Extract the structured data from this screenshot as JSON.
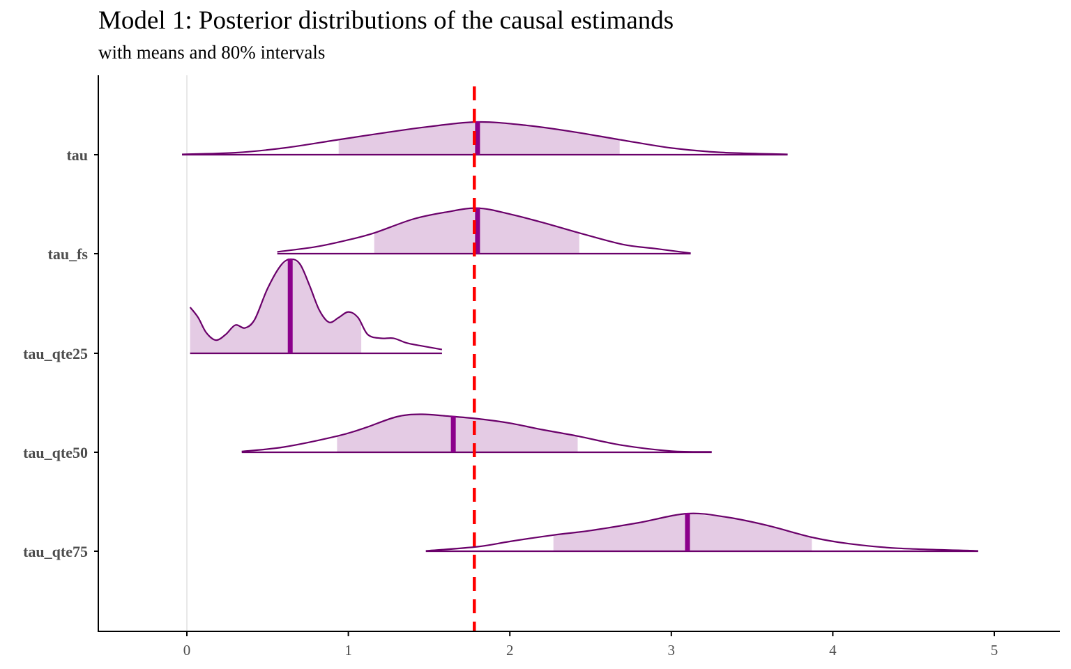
{
  "title": "Model 1: Posterior distributions of the causal estimands",
  "subtitle": "with means and 80% intervals",
  "colors": {
    "density_line": "#6a006a",
    "interval_fill": "#e4cbe4",
    "mean_line": "#8b008b",
    "reference_line": "#ff0000",
    "zero_line": "#d9d9d9",
    "axis": "#000000",
    "tick_label": "#4d4d4d"
  },
  "chart_data": {
    "type": "area",
    "title": "Model 1: Posterior distributions of the causal estimands",
    "subtitle": "with means and 80% intervals",
    "xlabel": "",
    "ylabel": "",
    "xlim": [
      -0.55,
      5.4
    ],
    "x_ticks": [
      0,
      1,
      2,
      3,
      4,
      5
    ],
    "grid": false,
    "reference_line": {
      "x": 1.78,
      "style": "dashed"
    },
    "zero_line": {
      "x": 0
    },
    "series": [
      {
        "name": "tau",
        "mean": 1.8,
        "interval_80": [
          0.94,
          2.68
        ],
        "range": [
          -0.03,
          3.72
        ],
        "density": [
          [
            -0.03,
            0.01
          ],
          [
            0.3,
            0.06
          ],
          [
            0.6,
            0.2
          ],
          [
            0.94,
            0.45
          ],
          [
            1.2,
            0.64
          ],
          [
            1.5,
            0.84
          ],
          [
            1.8,
            0.98
          ],
          [
            2.1,
            0.88
          ],
          [
            2.4,
            0.68
          ],
          [
            2.68,
            0.45
          ],
          [
            3.0,
            0.2
          ],
          [
            3.3,
            0.07
          ],
          [
            3.72,
            0.01
          ]
        ]
      },
      {
        "name": "tau_fs",
        "mean": 1.8,
        "interval_80": [
          1.16,
          2.43
        ],
        "range": [
          0.56,
          3.12
        ],
        "density": [
          [
            0.56,
            0.04
          ],
          [
            0.8,
            0.15
          ],
          [
            1.0,
            0.3
          ],
          [
            1.16,
            0.45
          ],
          [
            1.4,
            0.75
          ],
          [
            1.6,
            0.9
          ],
          [
            1.8,
            0.99
          ],
          [
            2.0,
            0.86
          ],
          [
            2.2,
            0.68
          ],
          [
            2.43,
            0.45
          ],
          [
            2.7,
            0.2
          ],
          [
            2.9,
            0.11
          ],
          [
            3.12,
            0.01
          ]
        ]
      },
      {
        "name": "tau_qte25",
        "mean": 0.64,
        "interval_80": [
          0.02,
          1.08
        ],
        "range": [
          0.02,
          1.58
        ],
        "density": [
          [
            0.02,
            0.49
          ],
          [
            0.07,
            0.38
          ],
          [
            0.12,
            0.22
          ],
          [
            0.18,
            0.14
          ],
          [
            0.24,
            0.2
          ],
          [
            0.3,
            0.3
          ],
          [
            0.36,
            0.27
          ],
          [
            0.42,
            0.36
          ],
          [
            0.5,
            0.69
          ],
          [
            0.58,
            0.93
          ],
          [
            0.64,
            1.0
          ],
          [
            0.7,
            0.95
          ],
          [
            0.76,
            0.72
          ],
          [
            0.82,
            0.46
          ],
          [
            0.88,
            0.33
          ],
          [
            0.94,
            0.38
          ],
          [
            1.0,
            0.44
          ],
          [
            1.06,
            0.38
          ],
          [
            1.12,
            0.2
          ],
          [
            1.2,
            0.16
          ],
          [
            1.28,
            0.16
          ],
          [
            1.36,
            0.11
          ],
          [
            1.45,
            0.08
          ],
          [
            1.58,
            0.04
          ]
        ]
      },
      {
        "name": "tau_qte50",
        "mean": 1.65,
        "interval_80": [
          0.93,
          2.42
        ],
        "range": [
          0.34,
          3.25
        ],
        "density": [
          [
            0.34,
            0.02
          ],
          [
            0.6,
            0.13
          ],
          [
            0.93,
            0.4
          ],
          [
            1.1,
            0.6
          ],
          [
            1.3,
            0.88
          ],
          [
            1.45,
            0.94
          ],
          [
            1.6,
            0.9
          ],
          [
            1.8,
            0.83
          ],
          [
            2.0,
            0.72
          ],
          [
            2.2,
            0.56
          ],
          [
            2.42,
            0.4
          ],
          [
            2.7,
            0.17
          ],
          [
            3.0,
            0.03
          ],
          [
            3.25,
            0.01
          ]
        ]
      },
      {
        "name": "tau_qte75",
        "mean": 3.1,
        "interval_80": [
          2.27,
          3.87
        ],
        "range": [
          1.48,
          4.9
        ],
        "density": [
          [
            1.48,
            0.01
          ],
          [
            1.8,
            0.12
          ],
          [
            2.0,
            0.26
          ],
          [
            2.27,
            0.43
          ],
          [
            2.5,
            0.55
          ],
          [
            2.8,
            0.76
          ],
          [
            3.1,
            1.0
          ],
          [
            3.35,
            0.9
          ],
          [
            3.6,
            0.68
          ],
          [
            3.87,
            0.37
          ],
          [
            4.1,
            0.2
          ],
          [
            4.4,
            0.08
          ],
          [
            4.9,
            0.01
          ]
        ]
      }
    ]
  }
}
